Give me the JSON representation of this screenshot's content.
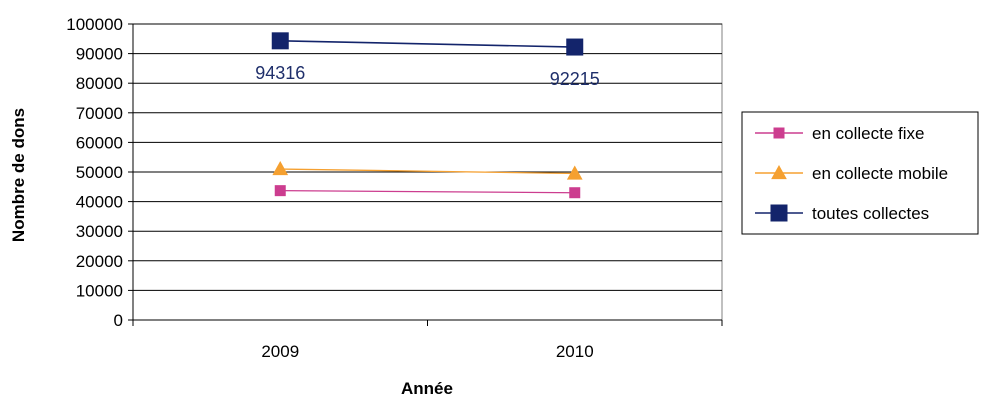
{
  "chart_data": {
    "type": "line",
    "title": "",
    "xlabel": "Année",
    "ylabel": "Nombre de dons",
    "categories": [
      "2009",
      "2010"
    ],
    "ylim": [
      0,
      100000
    ],
    "yticks": [
      0,
      10000,
      20000,
      30000,
      40000,
      50000,
      60000,
      70000,
      80000,
      90000,
      100000
    ],
    "grid": true,
    "legend_position": "right",
    "series": [
      {
        "name": "en collecte fixe",
        "values": [
          43700,
          43000
        ],
        "color": "#cc3d8f",
        "marker": "square"
      },
      {
        "name": "en collecte mobile",
        "values": [
          51000,
          49500
        ],
        "color": "#f5a030",
        "marker": "triangle"
      },
      {
        "name": "toutes collectes",
        "values": [
          94316,
          92215
        ],
        "color": "#13246b",
        "marker": "square-large"
      }
    ],
    "data_labels": [
      {
        "series": "toutes collectes",
        "category": "2009",
        "text": "94316"
      },
      {
        "series": "toutes collectes",
        "category": "2010",
        "text": "92215"
      }
    ]
  }
}
